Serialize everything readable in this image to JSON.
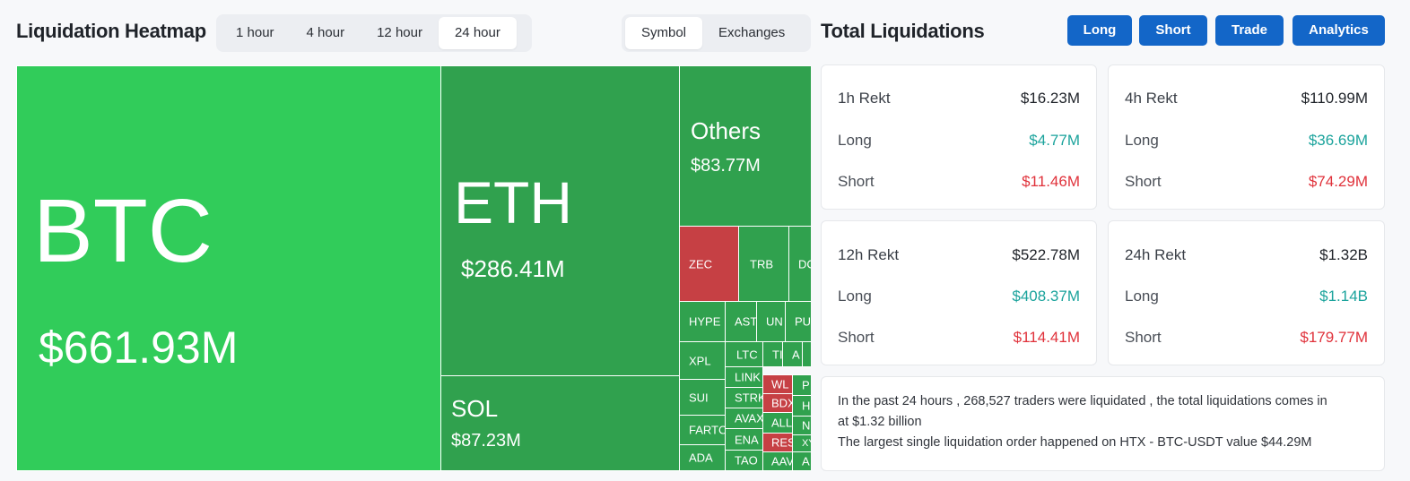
{
  "heatmap": {
    "title": "Liquidation Heatmap",
    "timeframes": [
      "1 hour",
      "4 hour",
      "12 hour",
      "24 hour"
    ],
    "active_timeframe": "24 hour",
    "views": [
      "Symbol",
      "Exchanges"
    ],
    "active_view": "Symbol",
    "tiles": {
      "btc": {
        "symbol": "BTC",
        "value": "$661.93M"
      },
      "eth": {
        "symbol": "ETH",
        "value": "$286.41M"
      },
      "sol": {
        "symbol": "SOL",
        "value": "$87.23M"
      },
      "others": {
        "symbol": "Others",
        "value": "$83.77M"
      },
      "zec": "ZEC",
      "trb": "TRB",
      "dc": "DC",
      "hype": "HYPE",
      "ast": "AST",
      "un": "UN",
      "pu": "PU",
      "xpl": "XPL",
      "sui": "SUI",
      "farto": "FARTC",
      "ada": "ADA",
      "ltc": "LTC",
      "ti": "TI",
      "a1": "A",
      "link": "LINK",
      "strk": "STRK",
      "avax": "AVAX",
      "ena": "ENA",
      "tao": "TAO",
      "wl": "WL",
      "bdx": "BDX",
      "all": "ALL",
      "res": "RES",
      "aav": "AAV",
      "p": "P",
      "h": "H",
      "n": "N",
      "xy": "XY",
      "a2": "A"
    }
  },
  "totals": {
    "title": "Total Liquidations",
    "buttons": [
      "Long",
      "Short",
      "Trade",
      "Analytics"
    ],
    "cards": [
      {
        "label": "1h Rekt",
        "total": "$16.23M",
        "long_label": "Long",
        "long": "$4.77M",
        "short_label": "Short",
        "short": "$11.46M"
      },
      {
        "label": "4h Rekt",
        "total": "$110.99M",
        "long_label": "Long",
        "long": "$36.69M",
        "short_label": "Short",
        "short": "$74.29M"
      },
      {
        "label": "12h Rekt",
        "total": "$522.78M",
        "long_label": "Long",
        "long": "$408.37M",
        "short_label": "Short",
        "short": "$114.41M"
      },
      {
        "label": "24h Rekt",
        "total": "$1.32B",
        "long_label": "Long",
        "long": "$1.14B",
        "short_label": "Short",
        "short": "$179.77M"
      }
    ],
    "summary_line1": "In the past 24 hours , 268,527 traders were liquidated , the total liquidations comes in",
    "summary_line2": "at $1.32 billion",
    "summary_line3": "The largest single liquidation order happened on HTX - BTC-USDT value $44.29M"
  },
  "colors": {
    "long": "#1ba39c",
    "short": "#e0323b",
    "accent": "#1366c8",
    "tile_green": "#30a14e",
    "tile_bright": "#31cc5a",
    "tile_red": "#c64044"
  }
}
